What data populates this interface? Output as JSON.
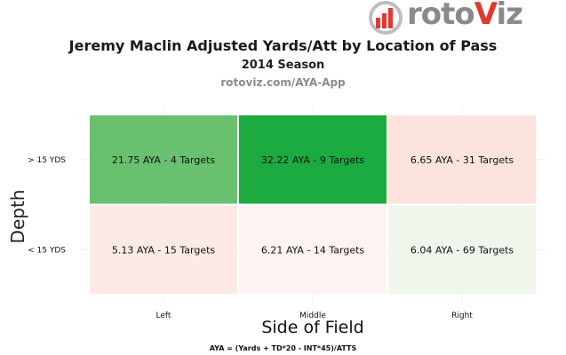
{
  "brand": {
    "logo_text_a": "roto",
    "logo_text_b": "V",
    "logo_text_c": "iz"
  },
  "header": {
    "title": "Jeremy Maclin Adjusted Yards/Att by Location of Pass",
    "subtitle": "2014 Season",
    "source": "rotoviz.com/AYA-App"
  },
  "footnote": "AYA = (Yards + TD*20 - INT*45)/ATTS",
  "chart_data": {
    "type": "heatmap",
    "title": "Jeremy Maclin Adjusted Yards/Att by Location of Pass",
    "subtitle": "2014 Season",
    "xlabel": "Side of Field",
    "ylabel": "Depth",
    "x_categories": [
      "Left",
      "Middle",
      "Right"
    ],
    "y_categories": [
      "> 15 YDS",
      "< 15 YDS"
    ],
    "cells": [
      {
        "x": "Left",
        "y": "> 15 YDS",
        "aya": 21.75,
        "targets": 4,
        "label": "21.75 AYA - 4 Targets",
        "color": "#69c06f"
      },
      {
        "x": "Middle",
        "y": "> 15 YDS",
        "aya": 32.22,
        "targets": 9,
        "label": "32.22 AYA - 9 Targets",
        "color": "#1cab40"
      },
      {
        "x": "Right",
        "y": "> 15 YDS",
        "aya": 6.65,
        "targets": 31,
        "label": "6.65 AYA - 31 Targets",
        "color": "#fde3de"
      },
      {
        "x": "Left",
        "y": "< 15 YDS",
        "aya": 5.13,
        "targets": 15,
        "label": "5.13 AYA - 15 Targets",
        "color": "#fdeae6"
      },
      {
        "x": "Middle",
        "y": "< 15 YDS",
        "aya": 6.21,
        "targets": 14,
        "label": "6.21 AYA - 14 Targets",
        "color": "#fdf3f1"
      },
      {
        "x": "Right",
        "y": "< 15 YDS",
        "aya": 6.04,
        "targets": 69,
        "label": "6.04 AYA - 69 Targets",
        "color": "#eff7ed"
      }
    ]
  }
}
